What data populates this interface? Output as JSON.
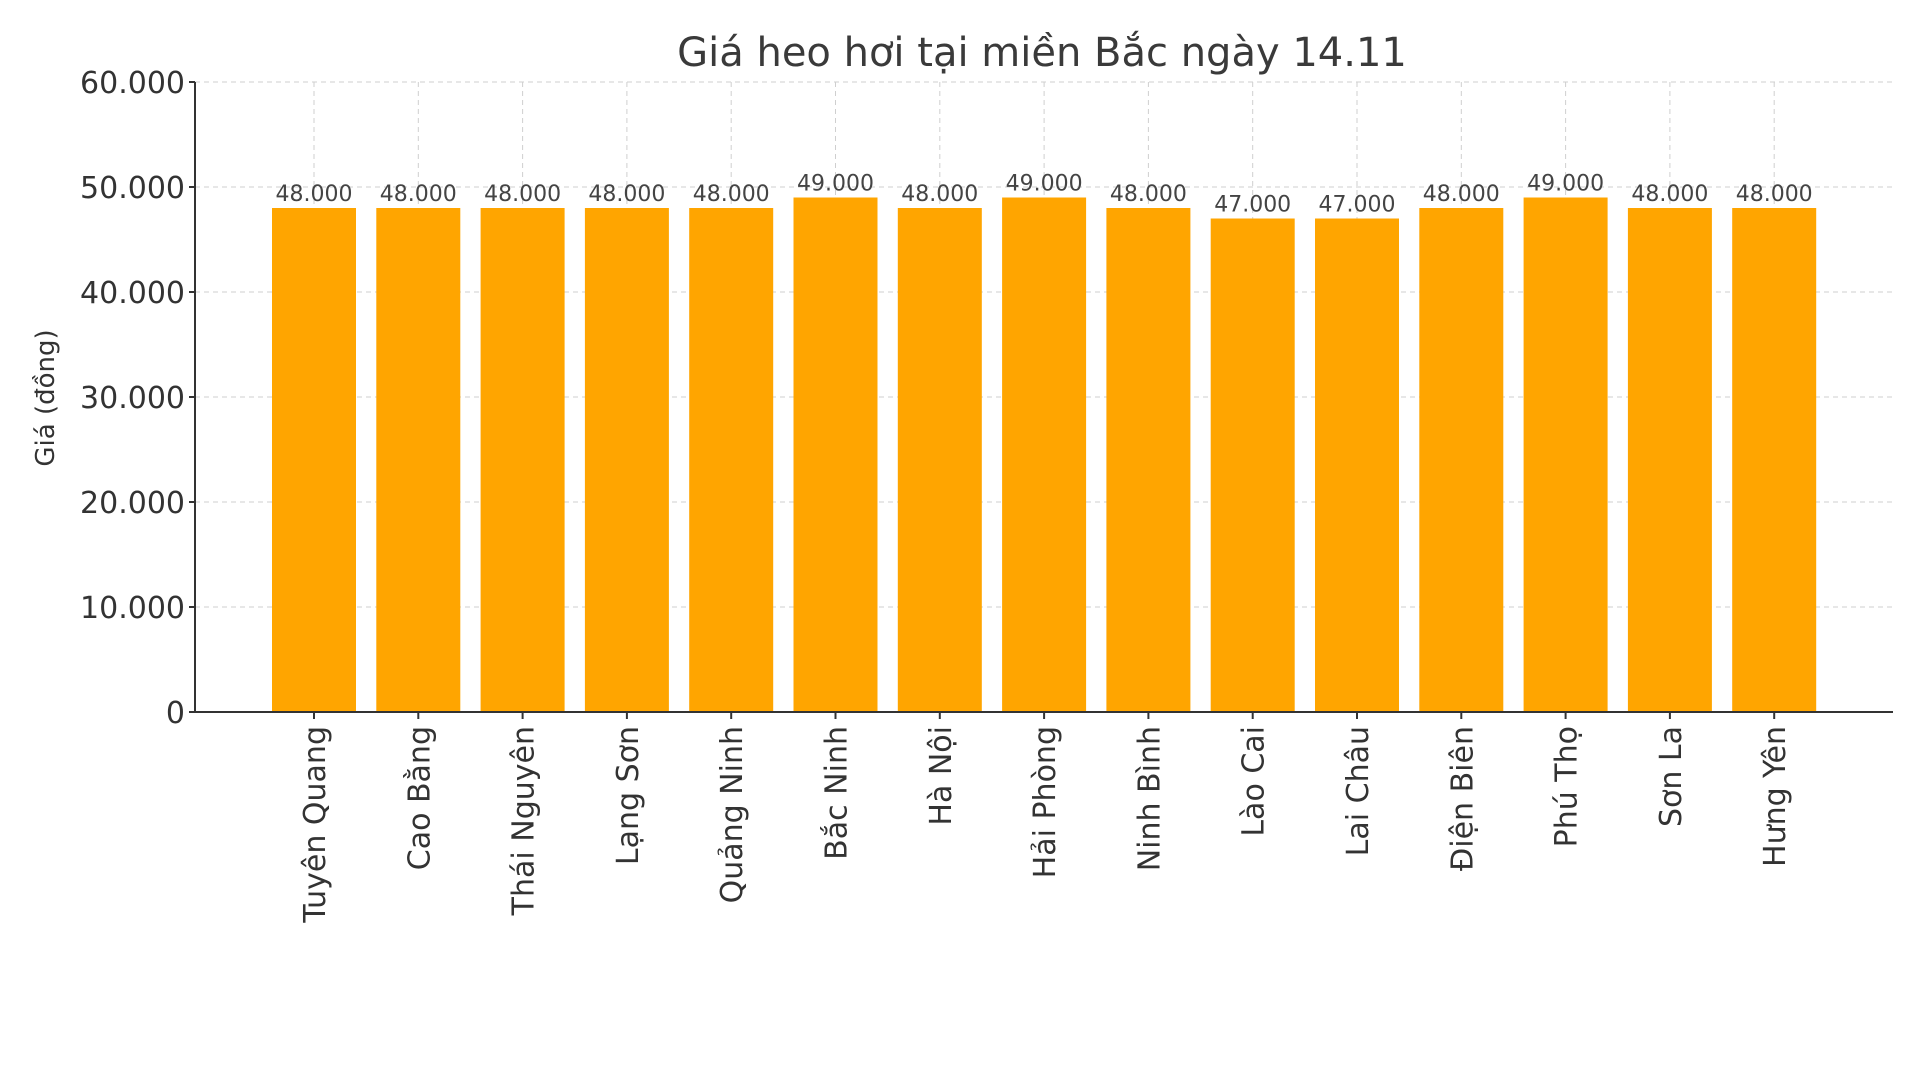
{
  "chart_data": {
    "type": "bar",
    "title": "Giá heo hơi tại miền Bắc ngày 14.11",
    "xlabel": "",
    "ylabel": "Giá (đồng)",
    "ylim": [
      0,
      60000
    ],
    "yticks": [
      0,
      10000,
      20000,
      30000,
      40000,
      50000,
      60000
    ],
    "ytick_labels": [
      "0",
      "10.000",
      "20.000",
      "30.000",
      "40.000",
      "50.000",
      "60.000"
    ],
    "categories": [
      "Tuyên Quang",
      "Cao Bằng",
      "Thái Nguyên",
      "Lạng Sơn",
      "Quảng Ninh",
      "Bắc Ninh",
      "Hà Nội",
      "Hải Phòng",
      "Ninh Bình",
      "Lào Cai",
      "Lai Châu",
      "Điện Biên",
      "Phú Thọ",
      "Sơn La",
      "Hưng Yên"
    ],
    "values": [
      48000,
      48000,
      48000,
      48000,
      48000,
      49000,
      48000,
      49000,
      48000,
      47000,
      47000,
      48000,
      49000,
      48000,
      48000
    ],
    "value_labels": [
      "48.000",
      "48.000",
      "48.000",
      "48.000",
      "48.000",
      "49.000",
      "48.000",
      "49.000",
      "48.000",
      "47.000",
      "47.000",
      "48.000",
      "49.000",
      "48.000",
      "48.000"
    ],
    "bar_color": "#FFA500",
    "grid": true,
    "legend": "none"
  }
}
